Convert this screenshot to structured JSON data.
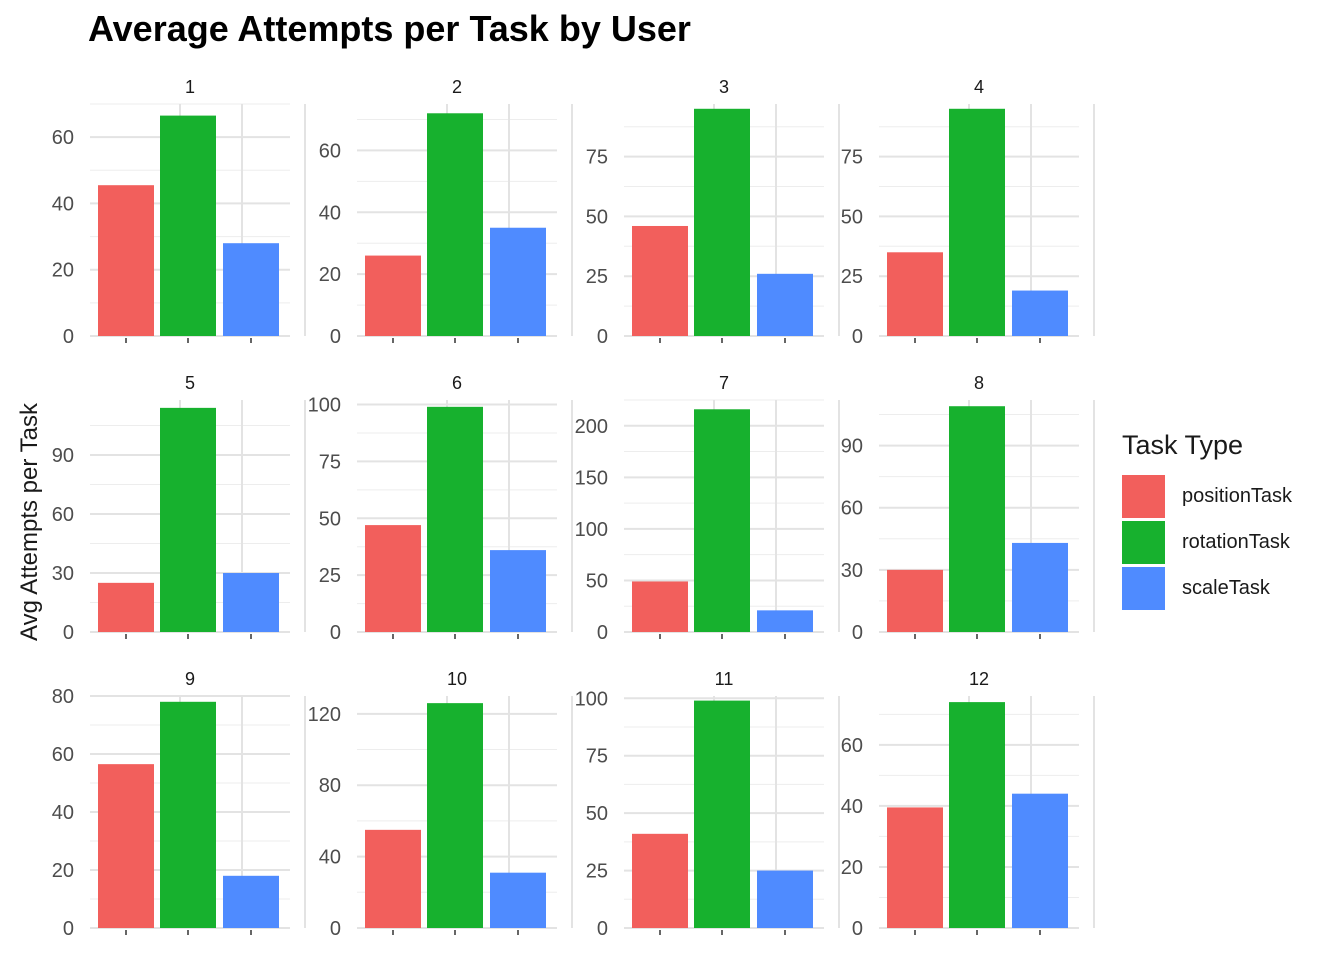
{
  "chart_data": {
    "type": "bar",
    "title": "Average Attempts per Task by User",
    "xlabel": "",
    "ylabel": "Avg Attempts per Task",
    "legend_title": "Task Type",
    "legend_position": "right",
    "grid": true,
    "categories": [
      "positionTask",
      "rotationTask",
      "scaleTask"
    ],
    "colors": {
      "positionTask": "#F25F5C",
      "rotationTask": "#17B12E",
      "scaleTask": "#4F8BFF"
    },
    "facets": [
      {
        "label": "1",
        "values": [
          45.5,
          66.5,
          28
        ],
        "ylim": [
          0,
          70
        ],
        "yticks": [
          0,
          20,
          40,
          60
        ]
      },
      {
        "label": "2",
        "values": [
          26,
          72,
          35
        ],
        "ylim": [
          0,
          75
        ],
        "yticks": [
          0,
          20,
          40,
          60
        ]
      },
      {
        "label": "3",
        "values": [
          46,
          95,
          26
        ],
        "ylim": [
          0,
          97
        ],
        "yticks": [
          0,
          25,
          50,
          75
        ]
      },
      {
        "label": "4",
        "values": [
          35,
          95,
          19
        ],
        "ylim": [
          0,
          97
        ],
        "yticks": [
          0,
          25,
          50,
          75
        ]
      },
      {
        "label": "5",
        "values": [
          25,
          114,
          30
        ],
        "ylim": [
          0,
          118
        ],
        "yticks": [
          0,
          30,
          60,
          90
        ]
      },
      {
        "label": "6",
        "values": [
          47,
          99,
          36
        ],
        "ylim": [
          0,
          102
        ],
        "yticks": [
          0,
          25,
          50,
          75,
          100
        ]
      },
      {
        "label": "7",
        "values": [
          49,
          216,
          21
        ],
        "ylim": [
          0,
          225
        ],
        "yticks": [
          0,
          50,
          100,
          150,
          200
        ]
      },
      {
        "label": "8",
        "values": [
          30,
          109,
          43
        ],
        "ylim": [
          0,
          112
        ],
        "yticks": [
          0,
          30,
          60,
          90
        ]
      },
      {
        "label": "9",
        "values": [
          56.5,
          78,
          18
        ],
        "ylim": [
          0,
          80
        ],
        "yticks": [
          0,
          20,
          40,
          60,
          80
        ]
      },
      {
        "label": "10",
        "values": [
          55,
          126,
          31
        ],
        "ylim": [
          0,
          130
        ],
        "yticks": [
          0,
          40,
          80,
          120
        ]
      },
      {
        "label": "11",
        "values": [
          41,
          99,
          25
        ],
        "ylim": [
          0,
          101
        ],
        "yticks": [
          0,
          25,
          50,
          75,
          100
        ]
      },
      {
        "label": "12",
        "values": [
          39.5,
          74,
          44
        ],
        "ylim": [
          0,
          76
        ],
        "yticks": [
          0,
          20,
          40,
          60
        ]
      }
    ]
  }
}
